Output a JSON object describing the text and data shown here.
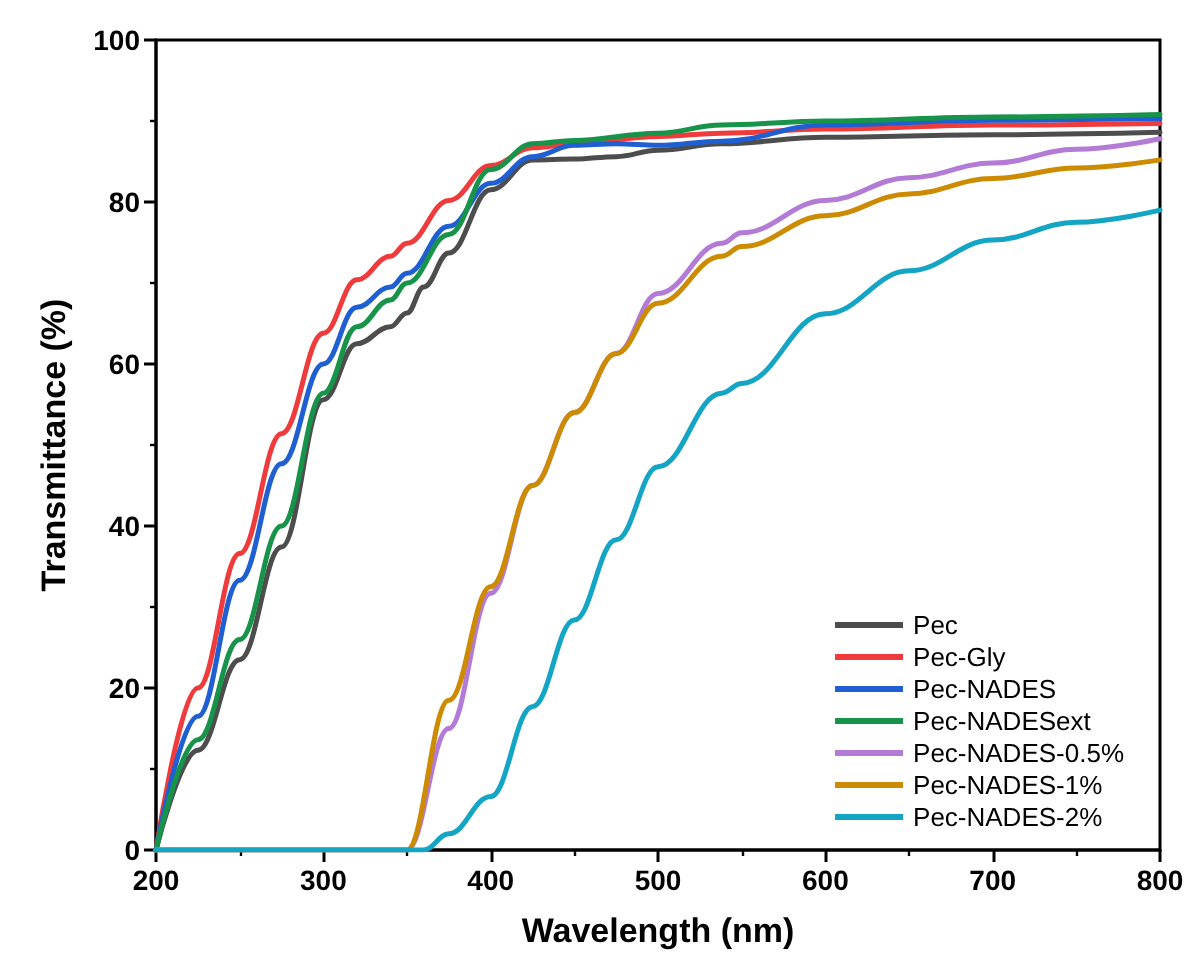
{
  "chart_data": {
    "type": "line",
    "xlabel": "Wavelength (nm)",
    "ylabel": "Transmittance (%)",
    "xlim": [
      200,
      800
    ],
    "xticks": [
      200,
      300,
      400,
      500,
      600,
      700,
      800
    ],
    "ylim": [
      0,
      100
    ],
    "yticks": [
      0,
      20,
      40,
      60,
      80,
      100
    ],
    "grid": false,
    "legend": "bottom right",
    "marker": "none",
    "line_style": "solid",
    "series": [
      {
        "name": "Pec",
        "color": "#4d4d4d",
        "x": [
          200,
          225,
          250,
          275,
          300,
          320,
          340,
          350,
          360,
          375,
          400,
          425,
          450,
          475,
          500,
          538,
          600,
          700,
          800
        ],
        "values": [
          0,
          12.3,
          23.5,
          37.4,
          55.6,
          62.5,
          64.6,
          66.3,
          69.5,
          73.7,
          81.5,
          85.2,
          85.3,
          85.6,
          86.4,
          87.2,
          88,
          88.3,
          88.6
        ]
      },
      {
        "name": "Pec-Gly",
        "color": "#ef3b3b",
        "x": [
          200,
          225,
          250,
          275,
          300,
          320,
          340,
          350,
          375,
          400,
          425,
          450,
          500,
          538,
          600,
          700,
          800
        ],
        "values": [
          0,
          20,
          36.6,
          51.4,
          63.8,
          70.4,
          73.3,
          74.9,
          80.2,
          84.5,
          86.7,
          87.2,
          88.1,
          88.5,
          89,
          89.5,
          89.7
        ]
      },
      {
        "name": "Pec-NADES",
        "color": "#1f5fd1",
        "x": [
          200,
          225,
          250,
          275,
          300,
          320,
          340,
          350,
          375,
          400,
          425,
          450,
          475,
          500,
          538,
          600,
          700,
          800
        ],
        "values": [
          0,
          16.5,
          33.3,
          47.7,
          60,
          67,
          69.5,
          71.2,
          77,
          82.3,
          85.6,
          87,
          87.2,
          87,
          87.5,
          89.5,
          90.1,
          90.3
        ]
      },
      {
        "name": "Pec-NADESext",
        "color": "#18934a",
        "x": [
          200,
          225,
          250,
          275,
          300,
          320,
          340,
          350,
          375,
          400,
          425,
          450,
          500,
          538,
          600,
          700,
          800
        ],
        "values": [
          0,
          13.6,
          26,
          40,
          56.4,
          64.6,
          67.9,
          70,
          76,
          84,
          87.2,
          87.6,
          88.5,
          89.5,
          90,
          90.5,
          90.8
        ]
      },
      {
        "name": "Pec-NADES-0.5%",
        "color": "#b37ad6",
        "x": [
          200,
          350,
          375,
          400,
          425,
          450,
          475,
          500,
          538,
          550,
          600,
          650,
          700,
          750,
          800
        ],
        "values": [
          0,
          0,
          15,
          31.7,
          45,
          54,
          61.3,
          68.7,
          74.9,
          76.2,
          80.2,
          83,
          84.8,
          86.5,
          87.8
        ]
      },
      {
        "name": "Pec-NADES-1%",
        "color": "#cc8b00",
        "x": [
          200,
          350,
          375,
          400,
          425,
          450,
          475,
          500,
          538,
          550,
          600,
          650,
          700,
          750,
          800
        ],
        "values": [
          0,
          0,
          18.5,
          32.5,
          45,
          54,
          61.3,
          67.5,
          73.3,
          74.5,
          78.3,
          81,
          82.9,
          84.2,
          85.2
        ]
      },
      {
        "name": "Pec-NADES-2%",
        "color": "#14a4c4",
        "x": [
          200,
          360,
          375,
          400,
          425,
          450,
          475,
          500,
          538,
          550,
          600,
          650,
          700,
          750,
          800
        ],
        "values": [
          0,
          0,
          2,
          6.6,
          17.7,
          28.4,
          38.3,
          47.3,
          56.4,
          57.6,
          66.2,
          71.5,
          75.3,
          77.5,
          79
        ]
      }
    ]
  }
}
